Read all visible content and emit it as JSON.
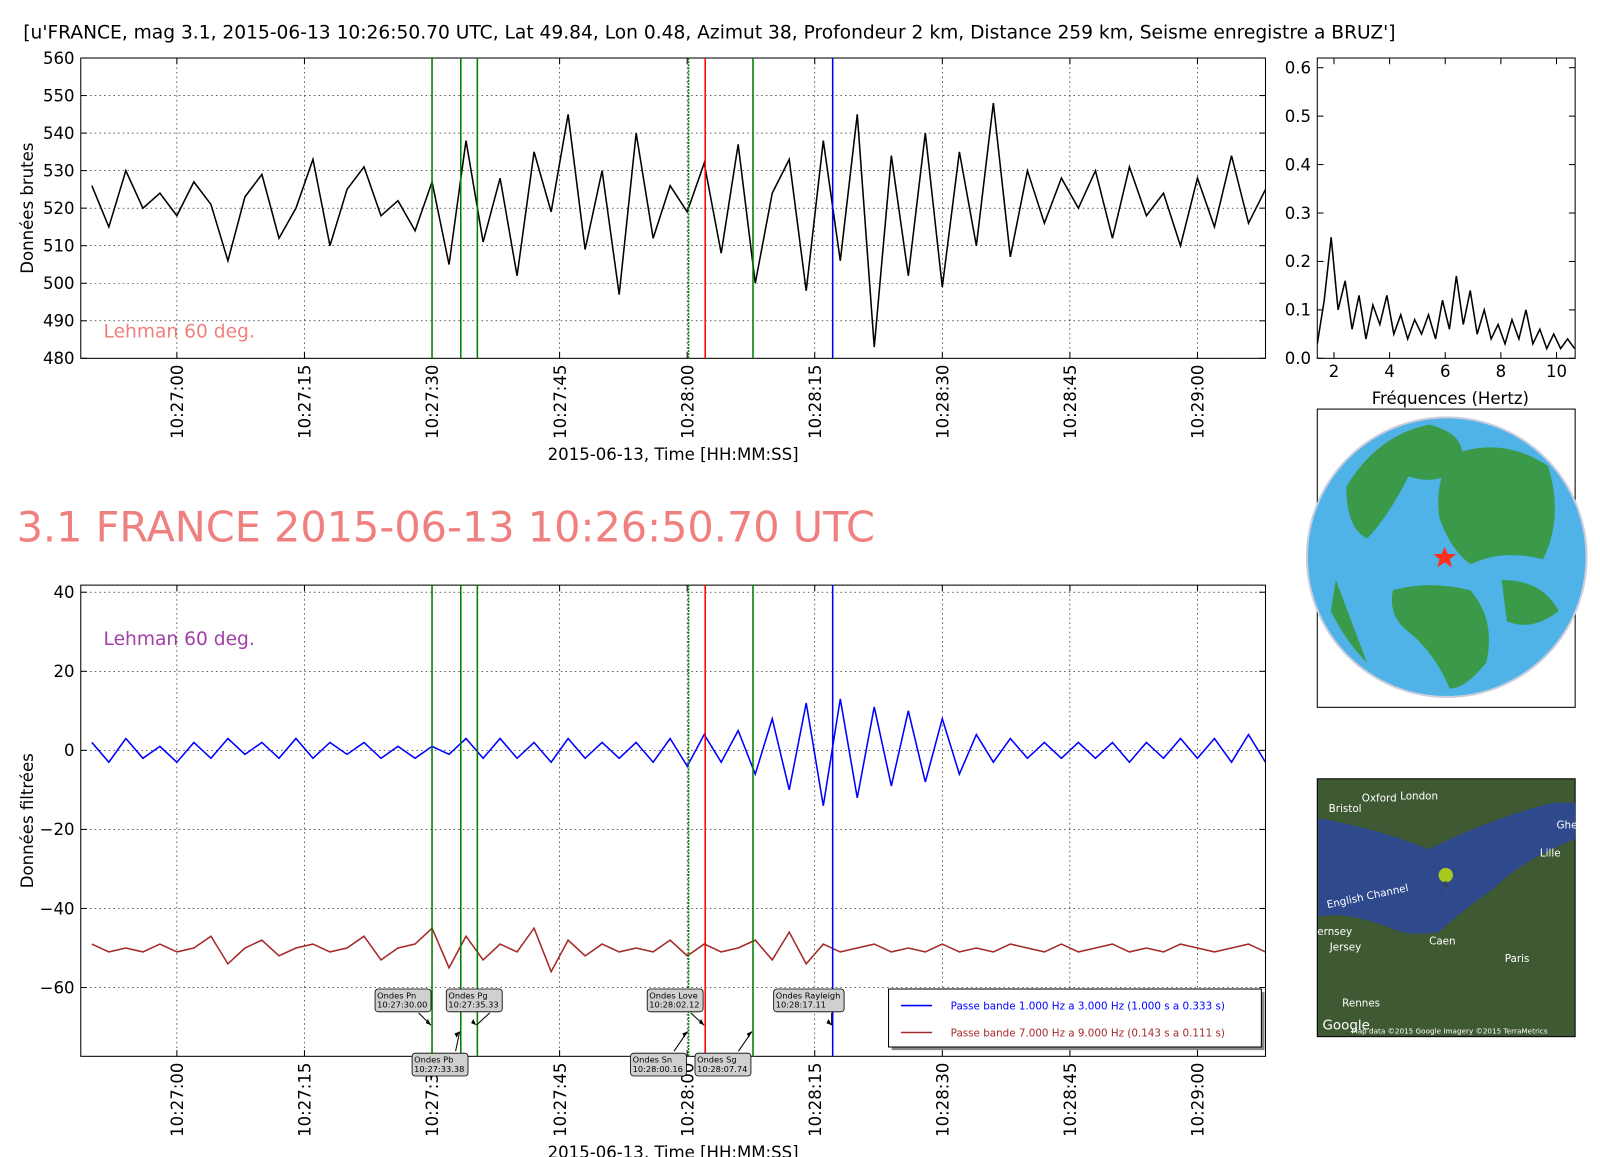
{
  "chart_data": [
    {
      "type": "line",
      "title": "[u'FRANCE, mag 3.1, 2015-06-13 10:26:50.70 UTC, Lat 49.84, Lon 0.48, Azimut  38, Profondeur 2 km, Distance   259 km, Seisme enregistre a BRUZ']",
      "ylabel": "Données brutes",
      "xlabel": "2015-06-13, Time [HH:MM:SS]",
      "annotation": {
        "text": "Lehman 60 deg.",
        "color": "#f08080"
      },
      "xlim": [
        "10:26:48.7",
        "10:29:08.0"
      ],
      "xticks": [
        "10:27:00",
        "10:27:15",
        "10:27:30",
        "10:27:45",
        "10:28:00",
        "10:28:15",
        "10:28:30",
        "10:28:45",
        "10:29:00"
      ],
      "ylim": [
        480,
        560
      ],
      "yticks": [
        480,
        490,
        500,
        510,
        520,
        530,
        540,
        550,
        560
      ],
      "grid": true,
      "x": [
        "10:26:50",
        "10:26:52",
        "10:26:54",
        "10:26:56",
        "10:26:58",
        "10:27:00",
        "10:27:02",
        "10:27:04",
        "10:27:06",
        "10:27:08",
        "10:27:10",
        "10:27:12",
        "10:27:14",
        "10:27:16",
        "10:27:18",
        "10:27:20",
        "10:27:22",
        "10:27:24",
        "10:27:26",
        "10:27:28",
        "10:27:30",
        "10:27:32",
        "10:27:34",
        "10:27:36",
        "10:27:38",
        "10:27:40",
        "10:27:42",
        "10:27:44",
        "10:27:46",
        "10:27:48",
        "10:27:50",
        "10:27:52",
        "10:27:54",
        "10:27:56",
        "10:27:58",
        "10:28:00",
        "10:28:02",
        "10:28:04",
        "10:28:06",
        "10:28:08",
        "10:28:10",
        "10:28:12",
        "10:28:14",
        "10:28:16",
        "10:28:18",
        "10:28:20",
        "10:28:22",
        "10:28:24",
        "10:28:26",
        "10:28:28",
        "10:28:30",
        "10:28:32",
        "10:28:34",
        "10:28:36",
        "10:28:38",
        "10:28:40",
        "10:28:42",
        "10:28:44",
        "10:28:46",
        "10:28:48",
        "10:28:50",
        "10:28:52",
        "10:28:54",
        "10:28:56",
        "10:28:58",
        "10:29:00",
        "10:29:02",
        "10:29:04",
        "10:29:06",
        "10:29:08"
      ],
      "series": [
        {
          "color": "#000000",
          "values": [
            526,
            515,
            530,
            520,
            524,
            518,
            527,
            521,
            506,
            523,
            529,
            512,
            520,
            533,
            510,
            525,
            531,
            518,
            522,
            514,
            527,
            505,
            538,
            511,
            528,
            502,
            535,
            519,
            545,
            509,
            530,
            497,
            540,
            512,
            526,
            519,
            532,
            508,
            537,
            500,
            524,
            533,
            498,
            538,
            506,
            545,
            483,
            534,
            502,
            540,
            499,
            535,
            510,
            548,
            507,
            530,
            516,
            528,
            520,
            530,
            512,
            531,
            518,
            524,
            510,
            528,
            515,
            534,
            516,
            525
          ]
        }
      ]
    },
    {
      "type": "line",
      "title": "3.1 FRANCE 2015-06-13 10:26:50.70 UTC",
      "ylabel": "Données filtrées",
      "xlabel": "2015-06-13, Time [HH:MM:SS]",
      "annotation": {
        "text": "Lehman 60 deg.",
        "color": "#a040a8"
      },
      "xlim": [
        "10:26:48.7",
        "10:29:08.0"
      ],
      "xticks": [
        "10:27:00",
        "10:27:15",
        "10:27:30",
        "10:27:45",
        "10:28:00",
        "10:28:15",
        "10:28:30",
        "10:28:45",
        "10:29:00"
      ],
      "ylim": [
        -77.4,
        41.8
      ],
      "yticks": [
        {
          "value": -60,
          "label": "−60"
        },
        {
          "value": -40,
          "label": "−40"
        },
        {
          "value": -20,
          "label": "−20"
        },
        0,
        20,
        40
      ],
      "grid": true,
      "x": [
        "10:26:50",
        "10:26:52",
        "10:26:54",
        "10:26:56",
        "10:26:58",
        "10:27:00",
        "10:27:02",
        "10:27:04",
        "10:27:06",
        "10:27:08",
        "10:27:10",
        "10:27:12",
        "10:27:14",
        "10:27:16",
        "10:27:18",
        "10:27:20",
        "10:27:22",
        "10:27:24",
        "10:27:26",
        "10:27:28",
        "10:27:30",
        "10:27:32",
        "10:27:34",
        "10:27:36",
        "10:27:38",
        "10:27:40",
        "10:27:42",
        "10:27:44",
        "10:27:46",
        "10:27:48",
        "10:27:50",
        "10:27:52",
        "10:27:54",
        "10:27:56",
        "10:27:58",
        "10:28:00",
        "10:28:02",
        "10:28:04",
        "10:28:06",
        "10:28:08",
        "10:28:10",
        "10:28:12",
        "10:28:14",
        "10:28:16",
        "10:28:18",
        "10:28:20",
        "10:28:22",
        "10:28:24",
        "10:28:26",
        "10:28:28",
        "10:28:30",
        "10:28:32",
        "10:28:34",
        "10:28:36",
        "10:28:38",
        "10:28:40",
        "10:28:42",
        "10:28:44",
        "10:28:46",
        "10:28:48",
        "10:28:50",
        "10:28:52",
        "10:28:54",
        "10:28:56",
        "10:28:58",
        "10:29:00",
        "10:29:02",
        "10:29:04",
        "10:29:06",
        "10:29:08"
      ],
      "series": [
        {
          "name": "Passe bande 1.000 Hz a 3.000 Hz (1.000 s a 0.333 s)",
          "color": "#0000ff",
          "values": [
            2,
            -3,
            3,
            -2,
            1,
            -3,
            2,
            -2,
            3,
            -1,
            2,
            -2,
            3,
            -2,
            2,
            -1,
            2,
            -2,
            1,
            -2,
            1,
            -1,
            3,
            -2,
            3,
            -2,
            2,
            -3,
            3,
            -2,
            2,
            -2,
            2,
            -3,
            3,
            -4,
            4,
            -3,
            5,
            -6,
            8,
            -10,
            12,
            -14,
            13,
            -12,
            11,
            -9,
            10,
            -8,
            8,
            -6,
            4,
            -3,
            3,
            -2,
            2,
            -2,
            2,
            -2,
            2,
            -3,
            2,
            -2,
            3,
            -2,
            3,
            -3,
            4,
            -3
          ]
        },
        {
          "name": "Passe bande 7.000 Hz a 9.000 Hz (0.143 s a 0.111 s)",
          "color": "#a52a2a",
          "values": [
            -49,
            -51,
            -50,
            -51,
            -49,
            -51,
            -50,
            -47,
            -54,
            -50,
            -48,
            -52,
            -50,
            -49,
            -51,
            -50,
            -47,
            -53,
            -50,
            -49,
            -45,
            -55,
            -47,
            -53,
            -49,
            -51,
            -45,
            -56,
            -48,
            -52,
            -49,
            -51,
            -50,
            -51,
            -48,
            -52,
            -49,
            -51,
            -50,
            -48,
            -53,
            -46,
            -54,
            -49,
            -51,
            -50,
            -49,
            -51,
            -50,
            -51,
            -49,
            -51,
            -50,
            -51,
            -49,
            -50,
            -51,
            -49,
            -51,
            -50,
            -49,
            -51,
            -50,
            -51,
            -49,
            -50,
            -51,
            -50,
            -49,
            -51
          ]
        }
      ],
      "phases": [
        {
          "name": "Ondes Pn",
          "time": "10:27:30.00",
          "color": "#008000"
        },
        {
          "name": "Ondes Pb",
          "time": "10:27:33.38",
          "color": "#008000"
        },
        {
          "name": "Ondes Pg",
          "time": "10:27:35.33",
          "color": "#008000"
        },
        {
          "name": "Ondes Sn",
          "time": "10:28:00.16",
          "color": "#008000",
          "linestyle": "dotted"
        },
        {
          "name": "Ondes Love",
          "time": "10:28:02.12",
          "color": "#ff0000"
        },
        {
          "name": "Ondes Sg",
          "time": "10:28:07.74",
          "color": "#008000"
        },
        {
          "name": "Ondes Rayleigh",
          "time": "10:28:17.11",
          "color": "#0000ff"
        }
      ]
    },
    {
      "type": "line",
      "xlabel": "Fréquences (Hertz)",
      "xlim": [
        1.4,
        10.67
      ],
      "xticks": [
        2,
        4,
        6,
        8,
        10
      ],
      "ylim": [
        0,
        0.62
      ],
      "yticks": [
        {
          "value": 0,
          "label": "0.0"
        },
        0.1,
        0.2,
        0.3,
        0.4,
        0.5,
        0.6
      ],
      "grid": false,
      "x": [
        1.4,
        1.65,
        1.9,
        2.15,
        2.4,
        2.65,
        2.9,
        3.15,
        3.4,
        3.65,
        3.9,
        4.15,
        4.4,
        4.65,
        4.9,
        5.15,
        5.4,
        5.65,
        5.9,
        6.15,
        6.4,
        6.65,
        6.9,
        7.15,
        7.4,
        7.65,
        7.9,
        8.15,
        8.4,
        8.65,
        8.9,
        9.15,
        9.4,
        9.65,
        9.9,
        10.15,
        10.4,
        10.65
      ],
      "series": [
        {
          "color": "#000000",
          "values": [
            0.03,
            0.12,
            0.25,
            0.1,
            0.16,
            0.06,
            0.13,
            0.04,
            0.11,
            0.07,
            0.13,
            0.05,
            0.09,
            0.04,
            0.08,
            0.05,
            0.09,
            0.04,
            0.12,
            0.06,
            0.17,
            0.07,
            0.14,
            0.05,
            0.1,
            0.04,
            0.07,
            0.03,
            0.08,
            0.04,
            0.1,
            0.03,
            0.06,
            0.02,
            0.05,
            0.02,
            0.04,
            0.02
          ]
        }
      ]
    }
  ],
  "map": {
    "labels": [
      "Bristol",
      "Oxford",
      "London",
      "Ghe",
      "Lille",
      "English Channel",
      "Jersey",
      "ernsey",
      "Caen",
      "Paris",
      "Rennes"
    ],
    "marker": "E",
    "logo": "Google",
    "attribution": "Map data ©2015 Google  Imagery ©2015 TerraMetrics"
  }
}
